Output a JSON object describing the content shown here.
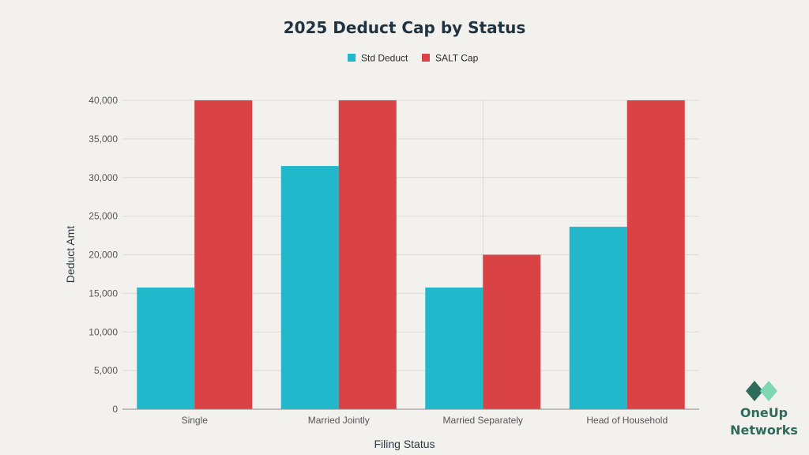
{
  "chart_data": {
    "type": "bar",
    "title": "2025 Deduct Cap by Status",
    "xlabel": "Filing Status",
    "ylabel": "Deduct Amt",
    "categories": [
      "Single",
      "Married Jointly",
      "Married Separately",
      "Head of Household"
    ],
    "series": [
      {
        "name": "Std Deduct",
        "color": "#22b8cc",
        "values": [
          15750,
          31500,
          15750,
          23625
        ]
      },
      {
        "name": "SALT Cap",
        "color": "#d94345",
        "values": [
          40000,
          40000,
          20000,
          40000
        ]
      }
    ],
    "ylim": [
      0,
      40000
    ],
    "yticks": [
      0,
      5000,
      10000,
      15000,
      20000,
      25000,
      30000,
      35000,
      40000
    ],
    "ytick_labels": [
      "0",
      "5,000",
      "10,000",
      "15,000",
      "20,000",
      "25,000",
      "30,000",
      "35,000",
      "40,000"
    ],
    "grid": true,
    "legend_position": "top-center"
  },
  "logo": {
    "line1": "OneUp",
    "line2": "Networks",
    "colors": [
      "#2e6b5a",
      "#7fd6b3"
    ]
  }
}
